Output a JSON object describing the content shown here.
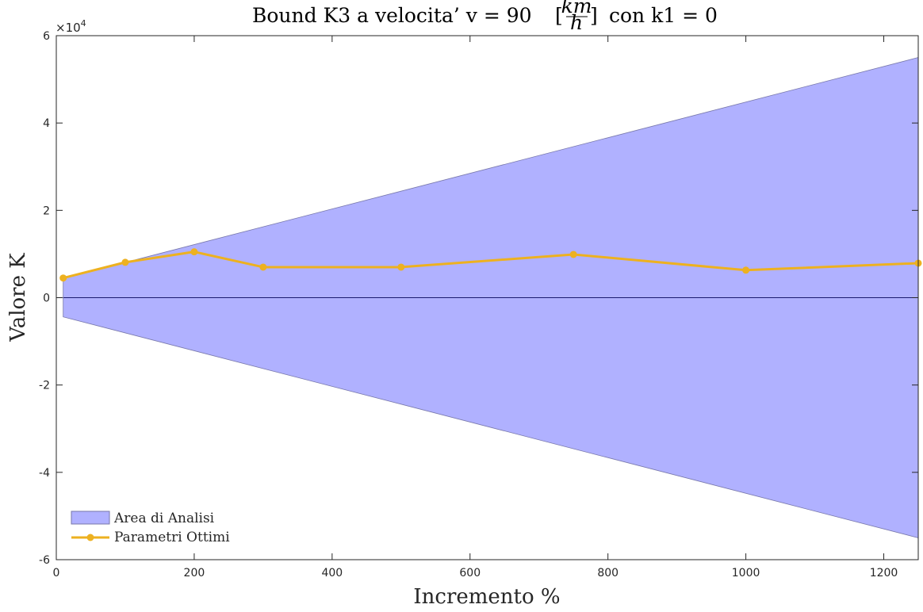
{
  "chart_data": {
    "type": "line",
    "title": {
      "main": "Bound K3 a velocita’ v = 90",
      "frac_num": "km",
      "frac_den": "h",
      "suffix": "con k1 = 0"
    },
    "xlabel": "Incremento %",
    "ylabel": "Valore K",
    "y_exponent": {
      "base": "×10",
      "power": "4"
    },
    "xlim": [
      0,
      1250
    ],
    "ylim": [
      -60000,
      60000
    ],
    "x_ticks": [
      0,
      200,
      400,
      600,
      800,
      1000,
      1200
    ],
    "x_tick_labels": [
      "0",
      "200",
      "400",
      "600",
      "800",
      "1000",
      "1200"
    ],
    "y_ticks": [
      -60000,
      -40000,
      -20000,
      0,
      20000,
      40000,
      60000
    ],
    "y_tick_labels": [
      "-6",
      "-4",
      "-2",
      "0",
      "2",
      "4",
      "6"
    ],
    "grid": false,
    "legend_position": "bottom-left",
    "series": [
      {
        "name": "Area di Analisi",
        "kind": "area",
        "color": "#b0b1ff",
        "edge_color": "#7777aa",
        "x": [
          10,
          1250
        ],
        "upper": [
          4400,
          55000
        ],
        "lower": [
          -4400,
          -55000
        ]
      },
      {
        "name": "Parametri Ottimi",
        "kind": "line",
        "color": "#edb120",
        "x": [
          10,
          100,
          200,
          300,
          500,
          750,
          1000,
          1250
        ],
        "y": [
          4500,
          8100,
          10500,
          7000,
          7000,
          9900,
          6300,
          7900
        ]
      }
    ],
    "zero_line_color": "#1a1a6e"
  }
}
